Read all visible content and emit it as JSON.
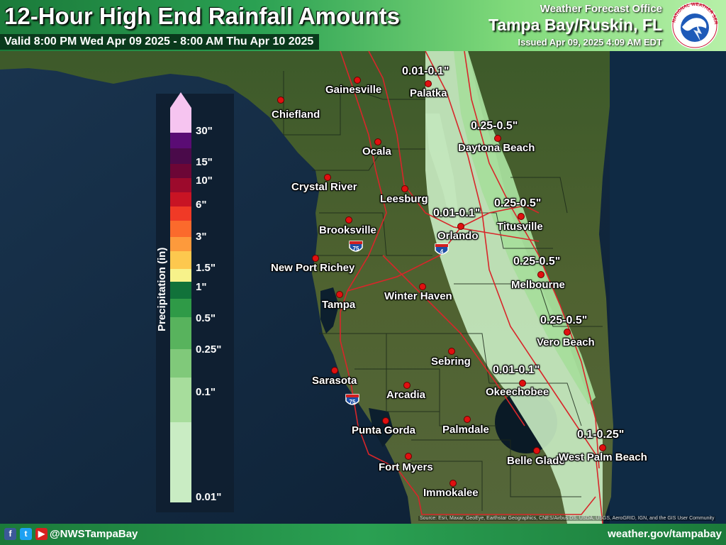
{
  "header": {
    "title": "12-Hour High End Rainfall Amounts",
    "valid": "Valid 8:00 PM Wed Apr 09 2025 - 8:00 AM Thu Apr 10 2025",
    "wfo_line": "Weather Forecast Office",
    "office": "Tampa Bay/Ruskin, FL",
    "issued": "Issued Apr 09, 2025 4:09 AM EDT"
  },
  "logo": {
    "text": "NATIONAL WEATHER SERVICE",
    "icon": "nws-logo-icon"
  },
  "legend": {
    "title": "Precipitation (in)",
    "ticks": [
      "30\"",
      "15\"",
      "10\"",
      "6\"",
      "3\"",
      "1.5\"",
      "1\"",
      "0.5\"",
      "0.25\"",
      "0.1\"",
      "0.01\""
    ],
    "colors": [
      "#c9ecc3",
      "#a7dd9c",
      "#80c97a",
      "#58b35d",
      "#2f9a47",
      "#11723a",
      "#f7f28a",
      "#fdc84e",
      "#fd9a3c",
      "#fb6a2c",
      "#f03a26",
      "#c81424",
      "#9c0a2c",
      "#6c0636",
      "#4a0a4a",
      "#5a0c74",
      "#f6c4f0"
    ]
  },
  "cities": [
    {
      "name": "Gainesville"
    },
    {
      "name": "Palatka"
    },
    {
      "name": "Chiefland"
    },
    {
      "name": "Ocala"
    },
    {
      "name": "Daytona Beach"
    },
    {
      "name": "Crystal River"
    },
    {
      "name": "Leesburg"
    },
    {
      "name": "Orlando"
    },
    {
      "name": "Titusville"
    },
    {
      "name": "Brooksville"
    },
    {
      "name": "New Port Richey"
    },
    {
      "name": "Melbourne"
    },
    {
      "name": "Winter Haven"
    },
    {
      "name": "Tampa"
    },
    {
      "name": "Vero Beach"
    },
    {
      "name": "Sebring"
    },
    {
      "name": "Sarasota"
    },
    {
      "name": "Arcadia"
    },
    {
      "name": "Okeechobee"
    },
    {
      "name": "Punta Gorda"
    },
    {
      "name": "Palmdale"
    },
    {
      "name": "Belle Glade"
    },
    {
      "name": "West Palm Beach"
    },
    {
      "name": "Fort Myers"
    },
    {
      "name": "Immokalee"
    }
  ],
  "amounts": [
    {
      "text": "0.01-0.1\""
    },
    {
      "text": "0.25-0.5\""
    },
    {
      "text": "0.01-0.1\""
    },
    {
      "text": "0.25-0.5\""
    },
    {
      "text": "0.25-0.5\""
    },
    {
      "text": "0.25-0.5\""
    },
    {
      "text": "0.01-0.1\""
    },
    {
      "text": "0.1-0.25\""
    }
  ],
  "shields": {
    "i75_north": "75",
    "i4": "4",
    "i75_south": "75"
  },
  "credit": "Source: Esri, Maxar, GeoEye, Earthstar Geographics, CNES/Airbus DS, USDA, USGS, AeroGRID, IGN, and the GIS User Community",
  "footer": {
    "icons": [
      "facebook-icon",
      "twitter-icon",
      "youtube-icon"
    ],
    "handle": "@NWSTampaBay",
    "website": "weather.gov/tampabay"
  },
  "colors": {
    "header_green": "#2aa052",
    "valid_bar": "#0a3a1c",
    "city_dot": "#e01010",
    "roads": "#d8262a"
  }
}
